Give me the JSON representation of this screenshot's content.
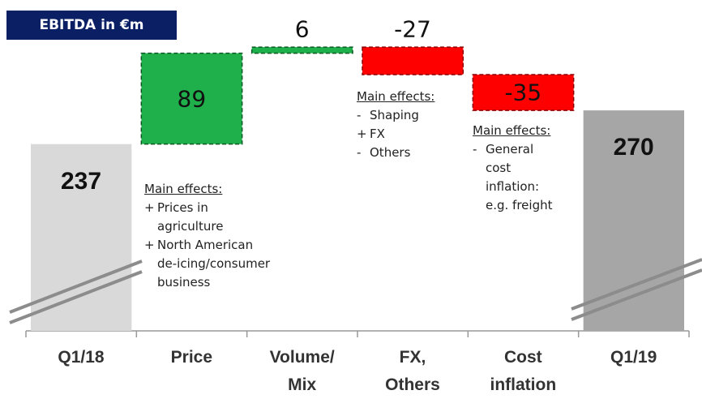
{
  "chart_data": {
    "type": "waterfall",
    "title": "EBITDA in €m",
    "categories": [
      "Q1/18",
      "Price",
      "Volume/\nMix",
      "FX,\nOthers",
      "Cost\ninflation",
      "Q1/19"
    ],
    "values": [
      237,
      89,
      6,
      -27,
      -35,
      270
    ],
    "measure": [
      "absolute",
      "relative",
      "relative",
      "relative",
      "relative",
      "total"
    ],
    "colors": [
      "#d9d9d9",
      "#1fb04c",
      "#1fb04c",
      "#ff0000",
      "#ff0000",
      "#a6a6a6"
    ],
    "ylim": [
      54,
      340
    ],
    "annotations": [
      {
        "category": 1,
        "heading": "Main effects:",
        "items": [
          {
            "bullet": "+",
            "text": "Prices in\nagriculture"
          },
          {
            "bullet": "+",
            "text": "North American\nde-icing/consumer\nbusiness"
          }
        ]
      },
      {
        "category": 3,
        "heading": "Main effects:",
        "items": [
          {
            "bullet": "-",
            "text": "Shaping"
          },
          {
            "bullet": "+",
            "text": "FX"
          },
          {
            "bullet": "-",
            "text": "Others"
          }
        ]
      },
      {
        "category": 4,
        "heading": "Main effects:",
        "items": [
          {
            "bullet": "-",
            "text": "General\ncost\ninflation:\ne.g. freight"
          }
        ]
      }
    ]
  }
}
